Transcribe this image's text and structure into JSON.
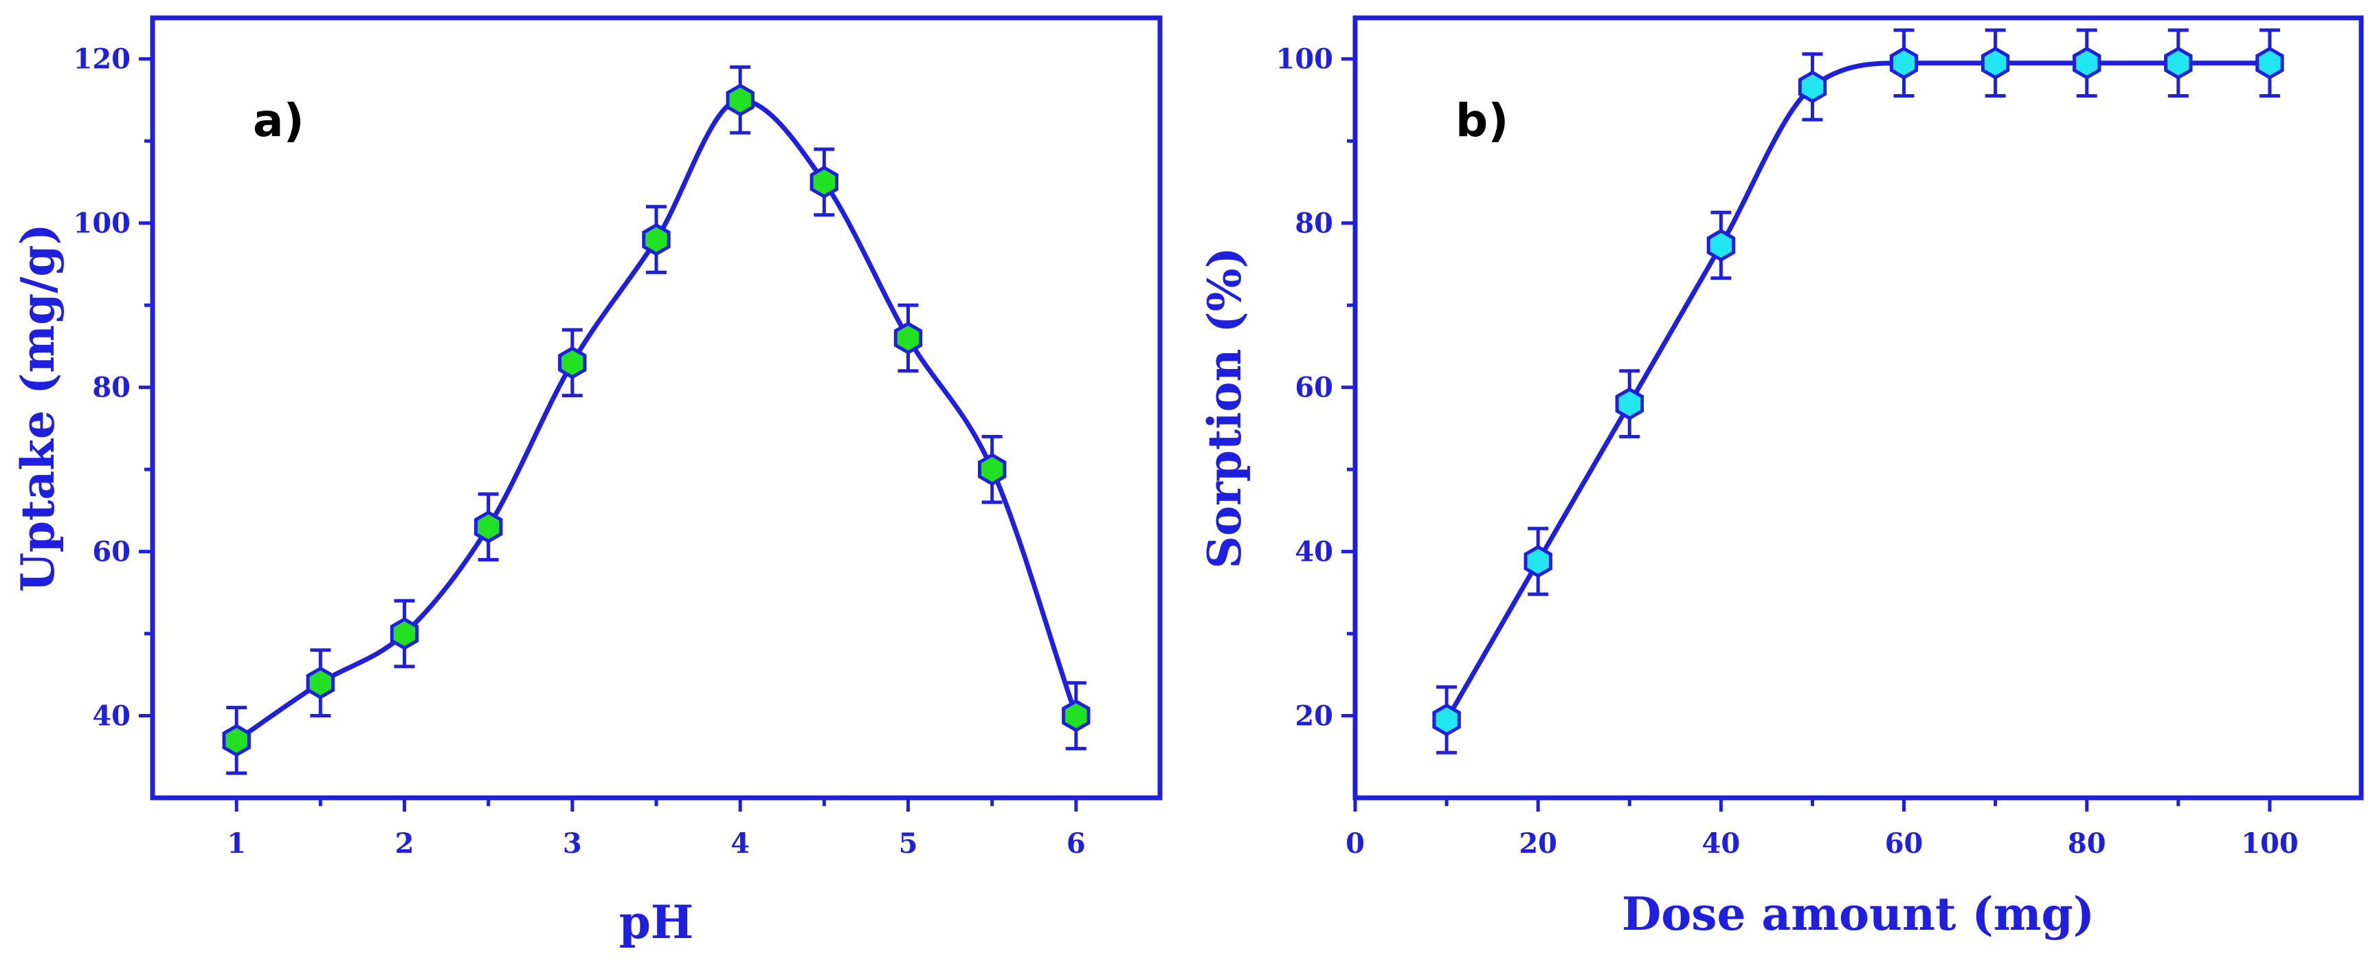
{
  "colors": {
    "axis": "#1f1fe0",
    "line": "#1f1fe0",
    "marker_a": "#22e022",
    "marker_b": "#22e6f0",
    "errorbar": "#1f1fe0"
  },
  "chart_data": [
    {
      "type": "scatter",
      "panel_label": "a)",
      "title": "",
      "xlabel": "pH",
      "ylabel": "Uptake (mg/g)",
      "xlim": [
        0.5,
        6.5
      ],
      "ylim": [
        30,
        125
      ],
      "xticks": [
        1,
        2,
        3,
        4,
        5,
        6
      ],
      "xtick_labels": [
        "1",
        "2",
        "3",
        "4",
        "5",
        "6"
      ],
      "yticks": [
        40,
        60,
        80,
        100,
        120
      ],
      "ytick_labels": [
        "40",
        "60",
        "80",
        "100",
        "120"
      ],
      "grid": false,
      "marker": "hexagon",
      "smooth_line": true,
      "x": [
        1,
        1.5,
        2,
        2.5,
        3,
        3.5,
        4,
        4.5,
        5,
        5.5,
        6
      ],
      "y": [
        37,
        44,
        50,
        63,
        83,
        98,
        115,
        105,
        86,
        70,
        40
      ],
      "yerr": [
        4,
        4,
        4,
        4,
        4,
        4,
        4,
        4,
        4,
        4,
        4
      ]
    },
    {
      "type": "scatter",
      "panel_label": "b)",
      "title": "",
      "xlabel": "Dose amount (mg)",
      "ylabel": "Sorption (%)",
      "xlim": [
        0,
        110
      ],
      "ylim": [
        10,
        105
      ],
      "xticks": [
        0,
        20,
        40,
        60,
        80,
        100
      ],
      "xtick_labels": [
        "0",
        "20",
        "40",
        "60",
        "80",
        "100"
      ],
      "yticks": [
        20,
        40,
        60,
        80,
        100
      ],
      "ytick_labels": [
        "20",
        "40",
        "60",
        "80",
        "100"
      ],
      "grid": false,
      "marker": "hexagon",
      "smooth_line": true,
      "x": [
        10,
        20,
        30,
        40,
        50,
        60,
        70,
        80,
        90,
        100
      ],
      "y": [
        19.5,
        38.8,
        58,
        77.3,
        96.6,
        99.5,
        99.5,
        99.5,
        99.5,
        99.5
      ],
      "yerr": [
        4,
        4,
        4,
        4,
        4,
        4,
        4,
        4,
        4,
        4
      ]
    }
  ]
}
